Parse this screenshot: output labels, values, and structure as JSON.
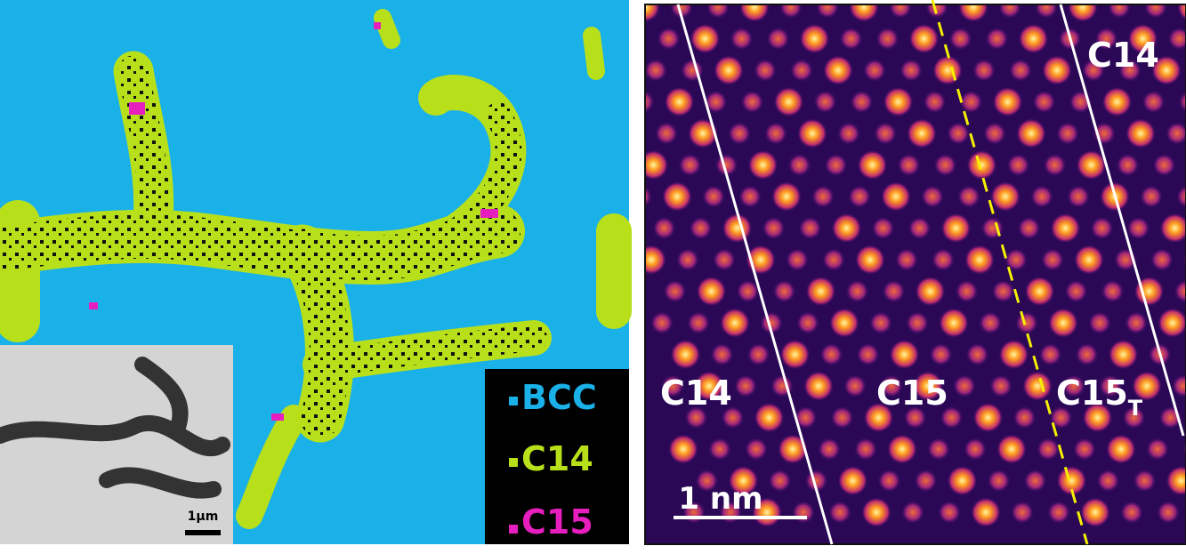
{
  "left_panel": {
    "legend": [
      "BCC",
      "C14",
      "C15"
    ],
    "inset_scale_bar": "1μm"
  },
  "right_panel": {
    "labels": [
      {
        "text": "C14"
      },
      {
        "text": "C15"
      },
      {
        "text": "C15",
        "subscript": "T"
      },
      {
        "text": "C14"
      }
    ],
    "scale_bar": "1 nm"
  }
}
